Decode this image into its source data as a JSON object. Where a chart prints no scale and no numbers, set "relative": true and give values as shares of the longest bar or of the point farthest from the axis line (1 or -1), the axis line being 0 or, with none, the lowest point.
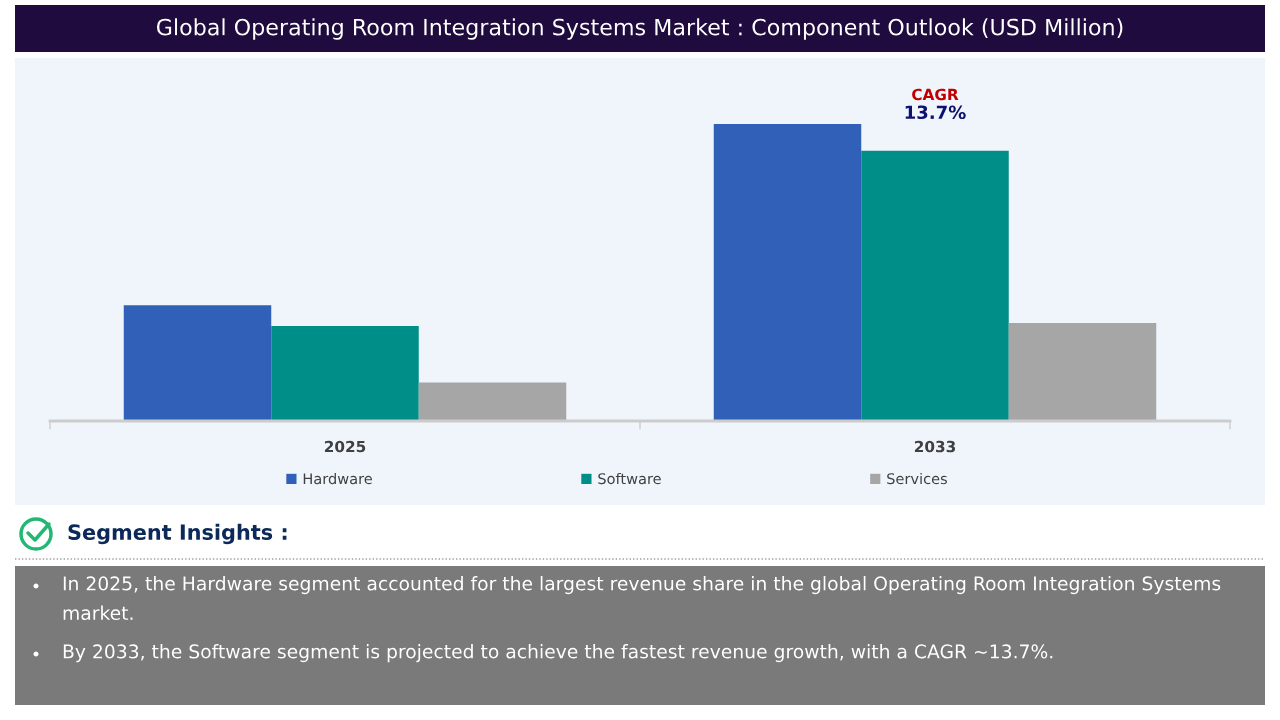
{
  "chart_data": {
    "type": "bar",
    "title": "Global Operating Room Integration Systems Market : Component Outlook (USD Million)",
    "categories": [
      "2025",
      "2033"
    ],
    "series": [
      {
        "name": "Hardware",
        "color": "#3160b8",
        "values": [
          0.39,
          1.0
        ]
      },
      {
        "name": "Software",
        "color": "#008e88",
        "values": [
          0.32,
          0.91
        ]
      },
      {
        "name": "Services",
        "color": "#a6a6a6",
        "values": [
          0.13,
          0.33
        ]
      }
    ],
    "relative": true,
    "legend": "bottom",
    "annotations": [
      "CAGR",
      "13.7%",
      "Segment Insights :",
      "In 2025, the Hardware segment accounted for the largest revenue share in the global Operating Room Integration Systems market.",
      "By 2033, the Software segment is projected to achieve the fastest revenue growth, with a CAGR ~13.7%."
    ]
  }
}
